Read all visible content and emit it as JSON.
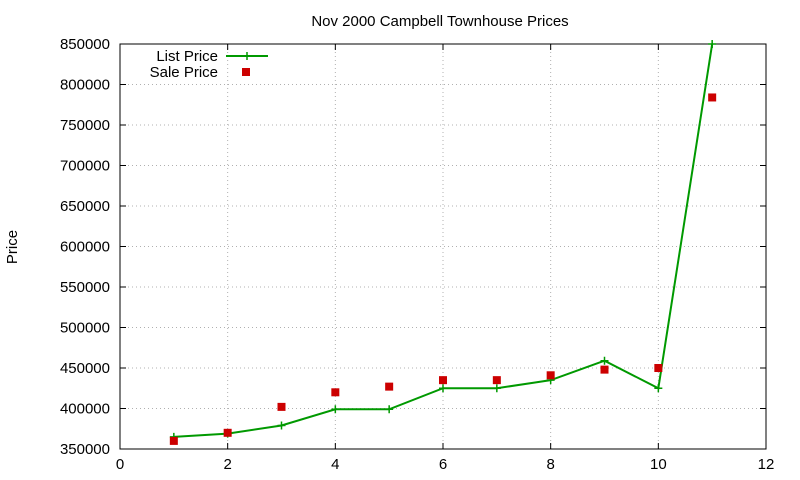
{
  "chart_data": {
    "type": "line",
    "title": "Nov 2000 Campbell Townhouse Prices",
    "xlabel": "",
    "ylabel": "Price",
    "xlim": [
      0,
      12
    ],
    "ylim": [
      350000,
      850000
    ],
    "x_ticks": [
      0,
      2,
      4,
      6,
      8,
      10,
      12
    ],
    "y_ticks": [
      350000,
      400000,
      450000,
      500000,
      550000,
      600000,
      650000,
      700000,
      750000,
      800000,
      850000
    ],
    "grid": true,
    "legend_position": "top-left",
    "series": [
      {
        "name": "List Price",
        "style": "line-with-plus-markers",
        "color": "#009900",
        "x": [
          1,
          2,
          3,
          4,
          5,
          6,
          7,
          8,
          9,
          10,
          11
        ],
        "y": [
          365000,
          369000,
          379000,
          399000,
          399000,
          425000,
          425000,
          435000,
          459000,
          425000,
          850000
        ]
      },
      {
        "name": "Sale Price",
        "style": "square-markers",
        "color": "#cc0000",
        "x": [
          1,
          2,
          3,
          4,
          5,
          6,
          7,
          8,
          9,
          10,
          11
        ],
        "y": [
          360000,
          370000,
          402000,
          420000,
          427000,
          435000,
          435000,
          441000,
          448000,
          450000,
          784000
        ]
      }
    ]
  }
}
